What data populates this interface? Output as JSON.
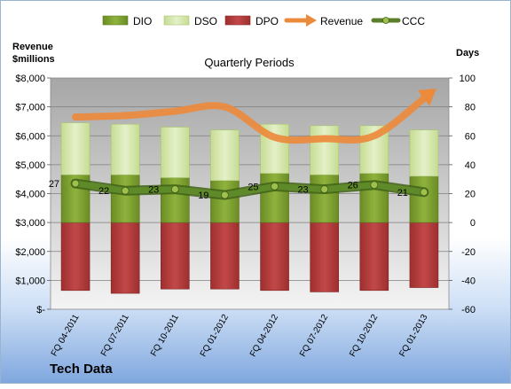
{
  "chart_data": {
    "type": "bar",
    "company": "Tech Data",
    "title": "Quarterly Periods",
    "left_axis_label": [
      "Revenue",
      "$millions"
    ],
    "right_axis_label": "Days",
    "categories": [
      "FQ 04-2011",
      "FQ 07-2011",
      "FQ 10-2011",
      "FQ 01-2012",
      "FQ 04-2012",
      "FQ 07-2012",
      "FQ 10-2012",
      "FQ 01-2013"
    ],
    "left_ylim": [
      0,
      8000
    ],
    "left_ticks": [
      "$-",
      "$1,000",
      "$2,000",
      "$3,000",
      "$4,000",
      "$5,000",
      "$6,000",
      "$7,000",
      "$8,000"
    ],
    "right_ylim": [
      -60,
      100
    ],
    "right_ticks": [
      "-60",
      "-40",
      "-20",
      "0",
      "20",
      "40",
      "60",
      "80",
      "100"
    ],
    "grid": true,
    "legend_position": "top",
    "series": [
      {
        "name": "DIO",
        "axis": "right",
        "kind": "stacked-bar",
        "color": "#7a9c2e",
        "values": [
          33,
          33,
          31,
          29,
          34,
          33,
          34,
          32
        ]
      },
      {
        "name": "DSO",
        "axis": "right",
        "kind": "stacked-bar",
        "color": "#d3e5a6",
        "values": [
          36,
          35,
          35,
          35,
          34,
          34,
          33,
          32
        ]
      },
      {
        "name": "DPO",
        "axis": "right",
        "kind": "stacked-bar-negative",
        "color": "#b23b3b",
        "values": [
          -47,
          -49,
          -46,
          -46,
          -47,
          -48,
          -47,
          -45
        ]
      },
      {
        "name": "Revenue",
        "axis": "left",
        "kind": "arrow-line",
        "color": "#ec8a3c",
        "values": [
          6650,
          6700,
          6850,
          7000,
          5950,
          5900,
          6000,
          7450
        ]
      },
      {
        "name": "CCC",
        "axis": "right",
        "kind": "line",
        "color": "#4f7a1e",
        "values": [
          27,
          22,
          23,
          19,
          25,
          23,
          26,
          21
        ],
        "labels": [
          "27",
          "22",
          "23",
          "19",
          "25",
          "23",
          "26",
          "21"
        ]
      }
    ]
  }
}
